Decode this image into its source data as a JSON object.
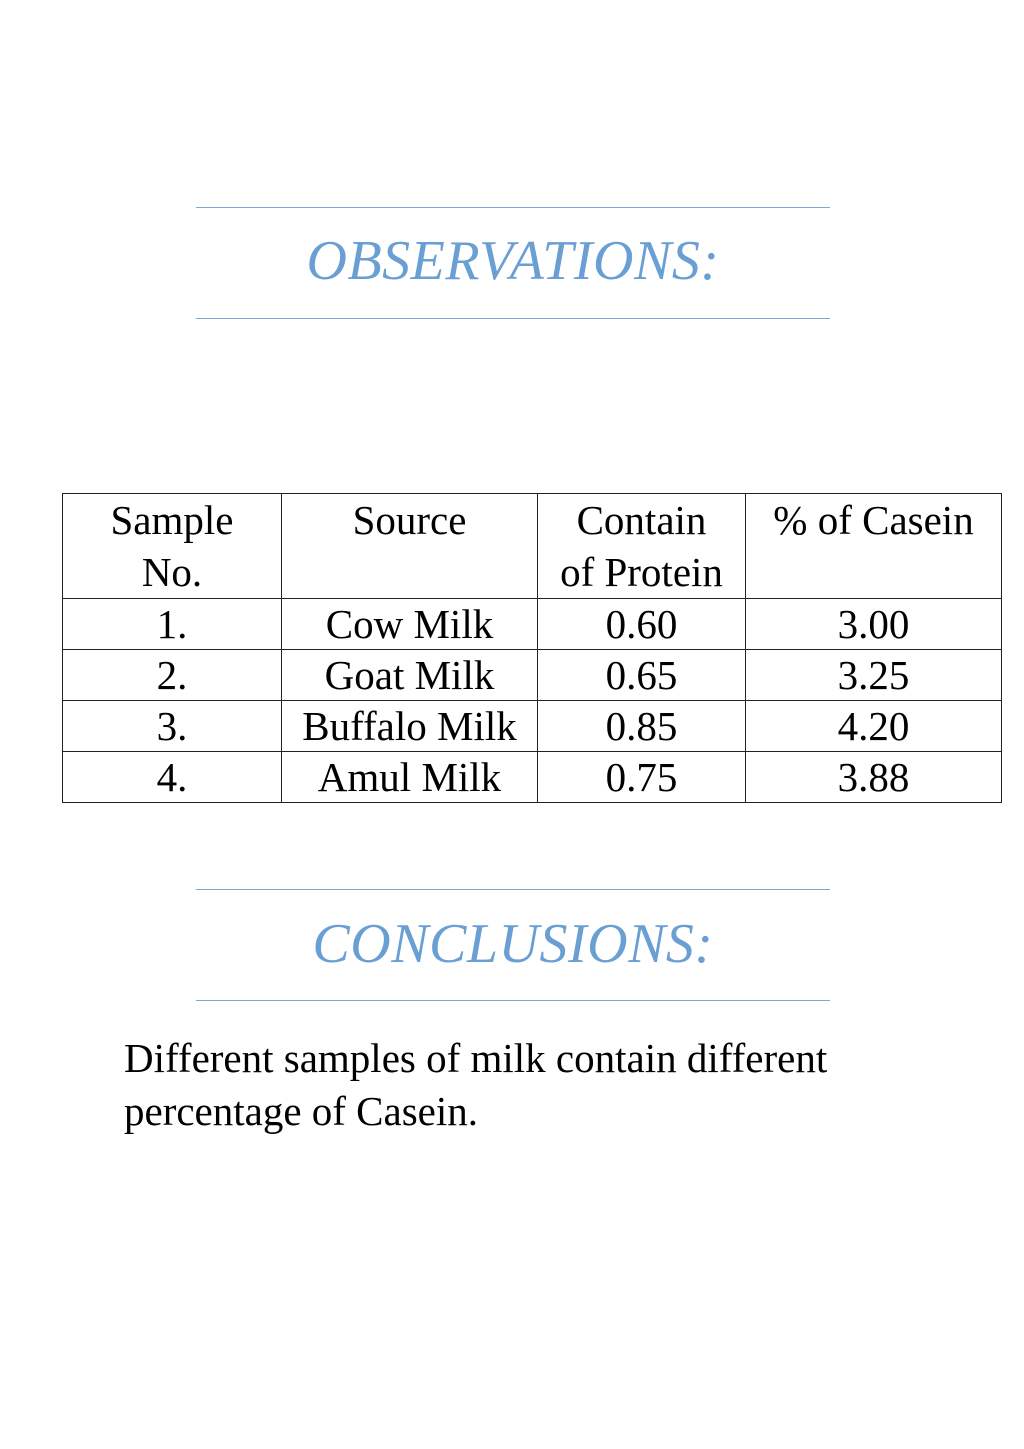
{
  "observations": {
    "heading": "OBSERVATIONS:"
  },
  "table": {
    "headers": {
      "sample_line1": "Sample",
      "sample_line2": "No.",
      "source": "Source",
      "protein_line1": "Contain",
      "protein_line2": "of Protein",
      "casein": "% of Casein"
    },
    "rows": [
      {
        "no": "1.",
        "source": "Cow Milk",
        "protein": "0.60",
        "casein": "3.00"
      },
      {
        "no": "2.",
        "source": "Goat Milk",
        "protein": "0.65",
        "casein": "3.25"
      },
      {
        "no": "3.",
        "source": "Buffalo Milk",
        "protein": "0.85",
        "casein": "4.20"
      },
      {
        "no": "4.",
        "source": "Amul Milk",
        "protein": "0.75",
        "casein": "3.88"
      }
    ]
  },
  "conclusions": {
    "heading": "CONCLUSIONS:",
    "text": "Different samples of milk contain different percentage of Casein."
  },
  "colors": {
    "heading": "#6a9fd4",
    "rule": "#7aa7d6",
    "text": "#000000"
  }
}
